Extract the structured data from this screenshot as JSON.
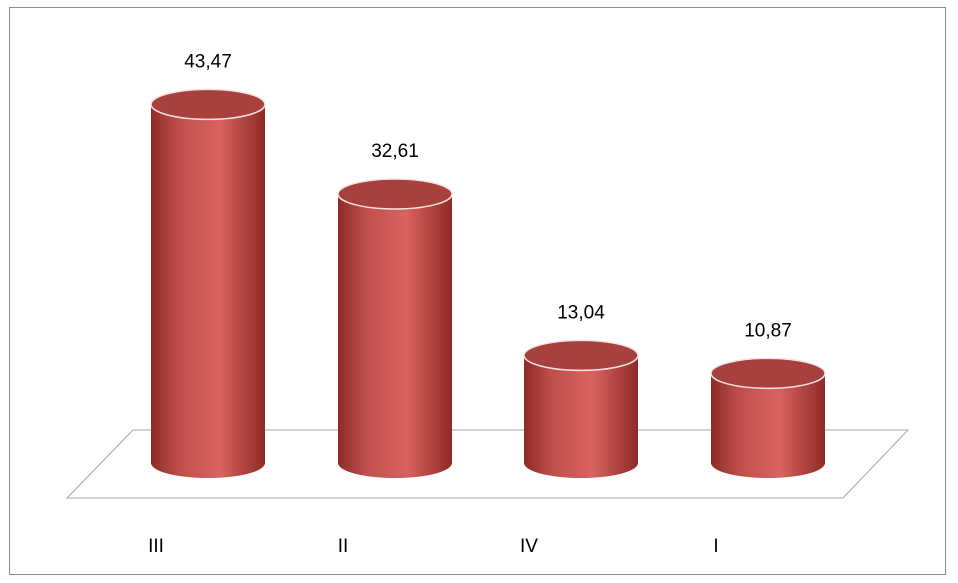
{
  "chart_data": {
    "type": "bar",
    "style": "3d-cylinder",
    "categories": [
      "III",
      "II",
      "IV",
      "I"
    ],
    "values": [
      43.47,
      32.61,
      13.04,
      10.87
    ],
    "value_labels": [
      "43,47",
      "32,61",
      "13,04",
      "10,87"
    ],
    "title": "",
    "xlabel": "",
    "ylabel": "",
    "ylim": [
      0,
      45
    ],
    "grid": false,
    "legend": "none",
    "colors": {
      "bar_body": "#c0504d",
      "bar_light": "#d9625f",
      "bar_dark": "#8e2a27",
      "bar_top": "#a8403d",
      "floor_line": "#a6a6a6",
      "text": "#000000"
    }
  }
}
